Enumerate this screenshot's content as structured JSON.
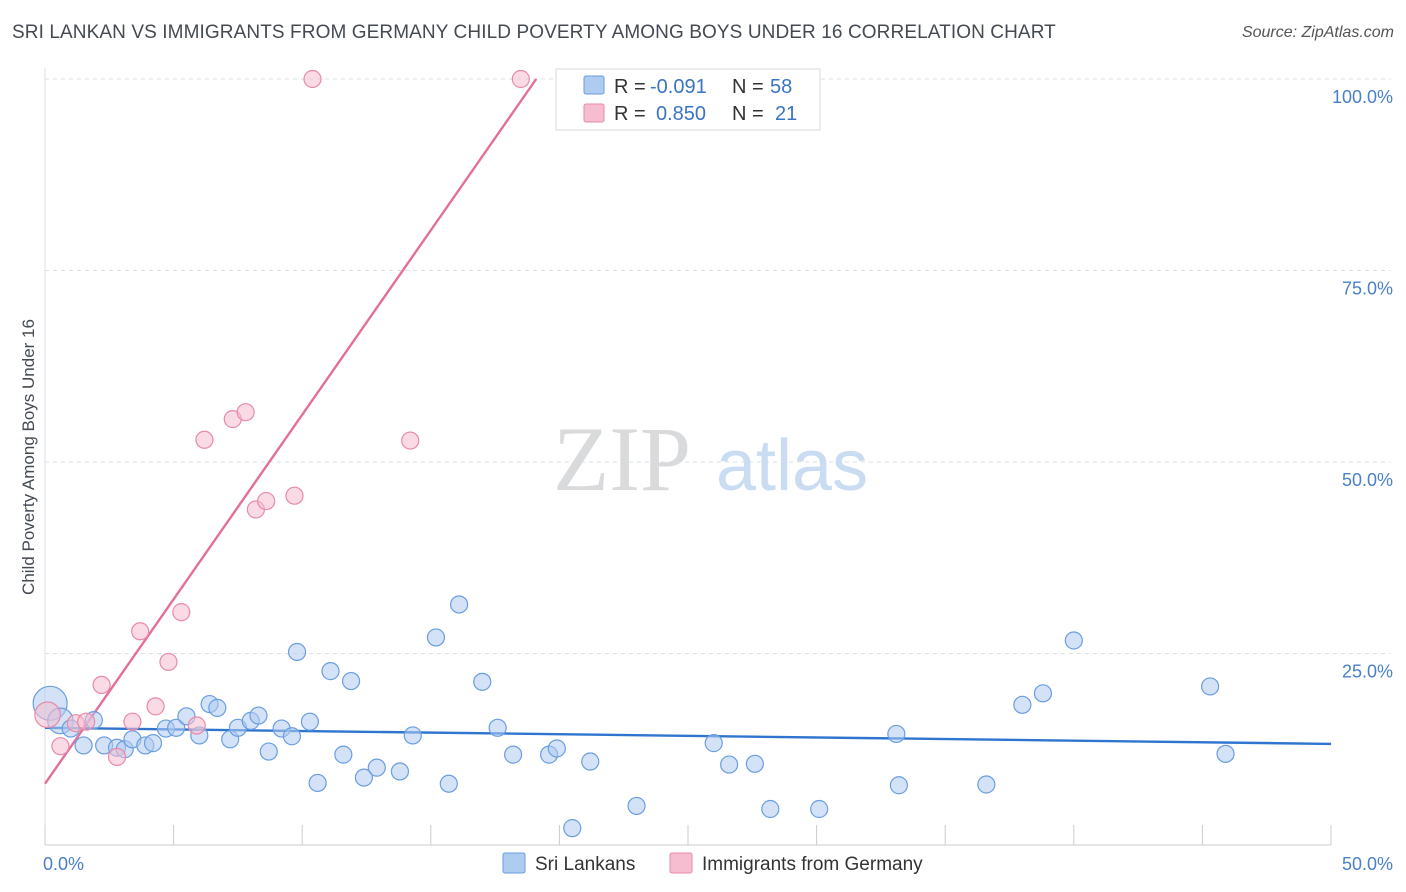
{
  "header": {
    "title": "SRI LANKAN VS IMMIGRANTS FROM GERMANY CHILD POVERTY AMONG BOYS UNDER 16 CORRELATION CHART",
    "source": "Source: ZipAtlas.com"
  },
  "watermark": {
    "zip": "ZIP",
    "atlas": "atlas"
  },
  "colors": {
    "blue_fill": "#aecbf0",
    "blue_stroke": "#6a9ee0",
    "blue_line": "#2f75d0",
    "pink_fill": "#f6bdd0",
    "pink_stroke": "#e88aa8",
    "pink_line": "#e2709a",
    "grid": "#dcdfe4",
    "tick_text": "#4a80c8"
  },
  "chart_data": {
    "type": "scatter",
    "title": "SRI LANKAN VS IMMIGRANTS FROM GERMANY CHILD POVERTY AMONG BOYS UNDER 16 CORRELATION CHART",
    "xlabel": "",
    "ylabel": "Child Poverty Among Boys Under 16",
    "xlim": [
      0,
      50
    ],
    "ylim": [
      0,
      100
    ],
    "x_tick_labels": [
      "0.0%",
      "50.0%"
    ],
    "y_ticks": [
      25,
      50,
      75,
      100
    ],
    "y_tick_labels": [
      "25.0%",
      "50.0%",
      "75.0%",
      "100.0%"
    ],
    "grid": true,
    "legend_position": "top-center",
    "stats": [
      {
        "r_label": "R =",
        "r": "-0.091",
        "n_label": "N =",
        "n": "58"
      },
      {
        "r_label": "R =",
        "r": "0.850",
        "n_label": "N =",
        "n": "21"
      }
    ],
    "series": [
      {
        "name": "Sri Lankans",
        "color": "#aecbf0",
        "trend": {
          "x": [
            0,
            50
          ],
          "y": [
            15.3,
            13.2
          ]
        },
        "points": [
          {
            "x": 0.2,
            "y": 18.5,
            "s": 2
          },
          {
            "x": 0.6,
            "y": 16.2,
            "s": 1.5
          },
          {
            "x": 1.0,
            "y": 15.2,
            "s": 1
          },
          {
            "x": 1.5,
            "y": 13.0,
            "s": 1
          },
          {
            "x": 1.9,
            "y": 16.3,
            "s": 1
          },
          {
            "x": 2.3,
            "y": 13.0,
            "s": 1
          },
          {
            "x": 2.8,
            "y": 12.7,
            "s": 1
          },
          {
            "x": 3.1,
            "y": 12.5,
            "s": 1
          },
          {
            "x": 3.4,
            "y": 13.8,
            "s": 1
          },
          {
            "x": 3.9,
            "y": 13.0,
            "s": 1
          },
          {
            "x": 4.2,
            "y": 13.3,
            "s": 1
          },
          {
            "x": 4.7,
            "y": 15.2,
            "s": 1
          },
          {
            "x": 5.1,
            "y": 15.3,
            "s": 1
          },
          {
            "x": 5.5,
            "y": 16.8,
            "s": 1
          },
          {
            "x": 6.0,
            "y": 14.3,
            "s": 1
          },
          {
            "x": 6.4,
            "y": 18.4,
            "s": 1
          },
          {
            "x": 6.7,
            "y": 17.9,
            "s": 1
          },
          {
            "x": 7.2,
            "y": 13.8,
            "s": 1
          },
          {
            "x": 7.5,
            "y": 15.3,
            "s": 1
          },
          {
            "x": 8.0,
            "y": 16.2,
            "s": 1
          },
          {
            "x": 8.3,
            "y": 16.9,
            "s": 1
          },
          {
            "x": 8.7,
            "y": 12.2,
            "s": 1
          },
          {
            "x": 9.2,
            "y": 15.2,
            "s": 1
          },
          {
            "x": 9.6,
            "y": 14.2,
            "s": 1
          },
          {
            "x": 9.8,
            "y": 25.2,
            "s": 1
          },
          {
            "x": 10.3,
            "y": 16.1,
            "s": 1
          },
          {
            "x": 10.6,
            "y": 8.1,
            "s": 1
          },
          {
            "x": 11.1,
            "y": 22.7,
            "s": 1
          },
          {
            "x": 11.6,
            "y": 11.8,
            "s": 1
          },
          {
            "x": 11.9,
            "y": 21.4,
            "s": 1
          },
          {
            "x": 12.4,
            "y": 8.8,
            "s": 1
          },
          {
            "x": 12.9,
            "y": 10.1,
            "s": 1
          },
          {
            "x": 13.8,
            "y": 9.6,
            "s": 1
          },
          {
            "x": 14.3,
            "y": 14.3,
            "s": 1
          },
          {
            "x": 15.7,
            "y": 8.0,
            "s": 1
          },
          {
            "x": 15.2,
            "y": 27.1,
            "s": 1
          },
          {
            "x": 16.1,
            "y": 31.4,
            "s": 1
          },
          {
            "x": 17.0,
            "y": 21.3,
            "s": 1
          },
          {
            "x": 17.6,
            "y": 15.3,
            "s": 1
          },
          {
            "x": 18.2,
            "y": 11.8,
            "s": 1
          },
          {
            "x": 19.6,
            "y": 11.8,
            "s": 1
          },
          {
            "x": 19.9,
            "y": 12.6,
            "s": 1
          },
          {
            "x": 20.5,
            "y": 2.2,
            "s": 1
          },
          {
            "x": 21.2,
            "y": 10.9,
            "s": 1
          },
          {
            "x": 23.0,
            "y": 5.1,
            "s": 1
          },
          {
            "x": 26.0,
            "y": 13.3,
            "s": 1
          },
          {
            "x": 26.6,
            "y": 10.5,
            "s": 1
          },
          {
            "x": 27.6,
            "y": 10.6,
            "s": 1
          },
          {
            "x": 28.2,
            "y": 4.7,
            "s": 1
          },
          {
            "x": 30.1,
            "y": 4.7,
            "s": 1
          },
          {
            "x": 33.1,
            "y": 14.5,
            "s": 1
          },
          {
            "x": 33.2,
            "y": 7.8,
            "s": 1
          },
          {
            "x": 36.6,
            "y": 7.9,
            "s": 1
          },
          {
            "x": 38.0,
            "y": 18.3,
            "s": 1
          },
          {
            "x": 38.8,
            "y": 19.8,
            "s": 1
          },
          {
            "x": 40.0,
            "y": 26.7,
            "s": 1
          },
          {
            "x": 45.3,
            "y": 20.7,
            "s": 1
          },
          {
            "x": 45.9,
            "y": 11.9,
            "s": 1
          }
        ]
      },
      {
        "name": "Immigrants from Germany",
        "color": "#f6bdd0",
        "trend": {
          "x": [
            0,
            19.1
          ],
          "y": [
            8.0,
            100
          ]
        },
        "points": [
          {
            "x": 0.1,
            "y": 17.0,
            "s": 1.5
          },
          {
            "x": 0.6,
            "y": 12.9,
            "s": 1
          },
          {
            "x": 1.2,
            "y": 15.9,
            "s": 1
          },
          {
            "x": 1.6,
            "y": 16.1,
            "s": 1
          },
          {
            "x": 2.2,
            "y": 20.9,
            "s": 1
          },
          {
            "x": 2.8,
            "y": 11.5,
            "s": 1
          },
          {
            "x": 3.4,
            "y": 16.1,
            "s": 1
          },
          {
            "x": 3.7,
            "y": 27.9,
            "s": 1
          },
          {
            "x": 4.3,
            "y": 18.1,
            "s": 1
          },
          {
            "x": 4.8,
            "y": 23.9,
            "s": 1
          },
          {
            "x": 5.3,
            "y": 30.4,
            "s": 1
          },
          {
            "x": 5.9,
            "y": 15.6,
            "s": 1
          },
          {
            "x": 6.2,
            "y": 52.9,
            "s": 1
          },
          {
            "x": 7.3,
            "y": 55.6,
            "s": 1
          },
          {
            "x": 7.8,
            "y": 56.5,
            "s": 1
          },
          {
            "x": 8.2,
            "y": 43.8,
            "s": 1
          },
          {
            "x": 8.6,
            "y": 44.9,
            "s": 1
          },
          {
            "x": 9.7,
            "y": 45.6,
            "s": 1
          },
          {
            "x": 10.4,
            "y": 100.0,
            "s": 1
          },
          {
            "x": 14.2,
            "y": 52.8,
            "s": 1
          },
          {
            "x": 18.5,
            "y": 100.0,
            "s": 1
          }
        ]
      }
    ]
  }
}
